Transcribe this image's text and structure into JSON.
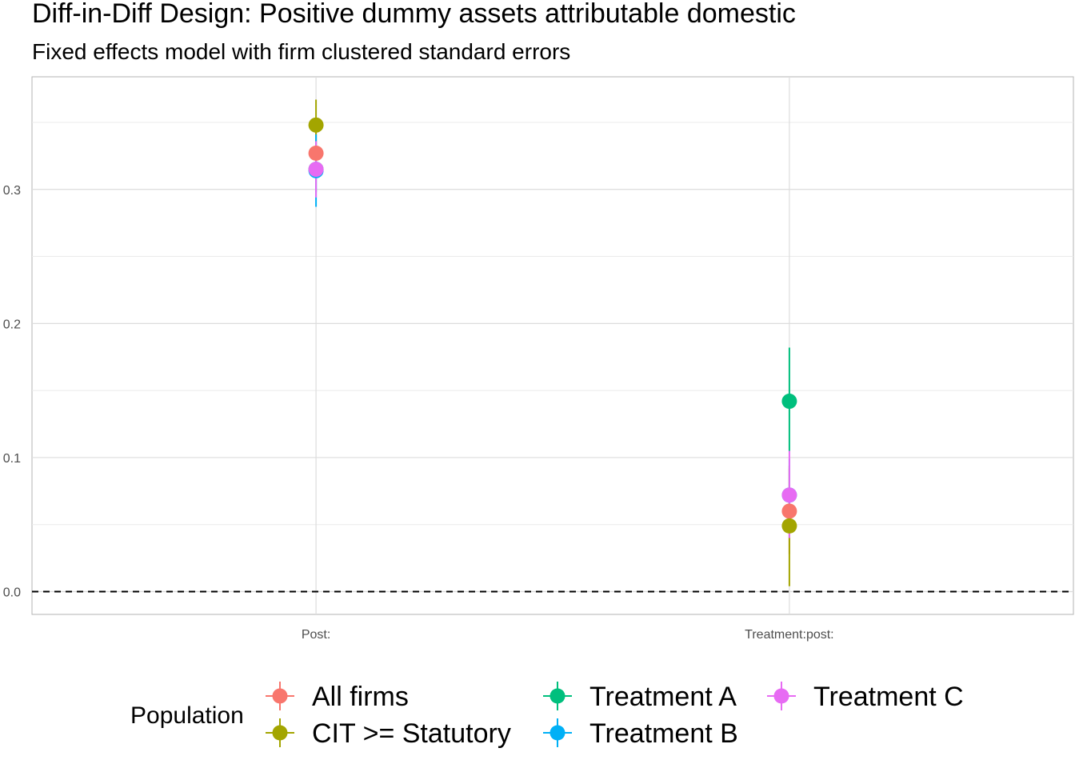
{
  "chart_data": {
    "type": "scatter",
    "title": "Diff-in-Diff Design: Positive dummy assets attributable domestic",
    "subtitle": "Fixed effects model with firm clustered standard errors",
    "xlabel": "",
    "ylabel": "",
    "categories": [
      "Post:",
      "Treatment:post:"
    ],
    "ylim": [
      -0.017,
      0.384
    ],
    "y_ticks": [
      0.0,
      0.1,
      0.2,
      0.3
    ],
    "y_tick_labels": [
      "0.0",
      "0.1",
      "0.2",
      "0.3"
    ],
    "reference_line": 0,
    "grid": true,
    "legend_title": "Population",
    "legend_position": "bottom",
    "series": [
      {
        "name": "All firms",
        "color": "#F8766D",
        "estimates": [
          {
            "category": "Post:",
            "value": 0.327,
            "low": 0.308,
            "high": 0.346
          },
          {
            "category": "Treatment:post:",
            "value": 0.06,
            "low": 0.028,
            "high": 0.092
          }
        ]
      },
      {
        "name": "CIT >= Statutory",
        "color": "#A3A500",
        "estimates": [
          {
            "category": "Post:",
            "value": 0.348,
            "low": 0.329,
            "high": 0.367
          },
          {
            "category": "Treatment:post:",
            "value": 0.049,
            "low": 0.004,
            "high": 0.094
          }
        ]
      },
      {
        "name": "Treatment A",
        "color": "#00BF7D",
        "estimates": [
          {
            "category": "Post:",
            "value": 0.315,
            "low": 0.298,
            "high": 0.332
          },
          {
            "category": "Treatment:post:",
            "value": 0.142,
            "low": 0.105,
            "high": 0.182
          }
        ]
      },
      {
        "name": "Treatment B",
        "color": "#00B0F6",
        "estimates": [
          {
            "category": "Post:",
            "value": 0.314,
            "low": 0.287,
            "high": 0.341
          },
          {
            "category": "Treatment:post:",
            "value": 0.072,
            "low": 0.045,
            "high": 0.099
          }
        ]
      },
      {
        "name": "Treatment C",
        "color": "#E76BF3",
        "estimates": [
          {
            "category": "Post:",
            "value": 0.315,
            "low": 0.294,
            "high": 0.336
          },
          {
            "category": "Treatment:post:",
            "value": 0.072,
            "low": 0.04,
            "high": 0.105
          }
        ]
      }
    ]
  }
}
